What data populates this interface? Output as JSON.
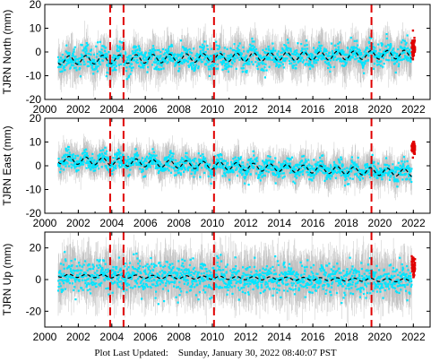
{
  "footer": {
    "label": "Plot Last Updated:",
    "timestamp": "Sunday, January 30, 2022 08:40:07 PST"
  },
  "colors": {
    "scatter": "#00e5ff",
    "errorbar": "#b8b8b8",
    "recent": "#e00000",
    "model": "#000000",
    "event_line": "#e00000"
  },
  "chart_data": [
    {
      "type": "scatter",
      "ylabel": "TJRN North (mm)",
      "xlim": [
        2000,
        2023
      ],
      "ylim": [
        -20,
        20
      ],
      "xticks": [
        2000,
        2002,
        2004,
        2006,
        2008,
        2010,
        2012,
        2014,
        2016,
        2018,
        2020,
        2022
      ],
      "yticks": [
        -20,
        -10,
        0,
        10,
        20
      ],
      "event_lines": [
        2003.9,
        2004.7,
        2010.1,
        2019.5
      ],
      "model_trend": {
        "x0": 2000.8,
        "x1": 2021.9,
        "y0": -3.5,
        "y1": -1.0,
        "seasonal_amplitude": 1.8
      },
      "scatter_spread": 4.5,
      "errorbar_size": 6,
      "recent_points": {
        "x0": 2021.9,
        "x1": 2022.1,
        "y_center": 1.5,
        "y_spread": 5
      }
    },
    {
      "type": "scatter",
      "ylabel": "TJRN East (mm)",
      "xlim": [
        2000,
        2023
      ],
      "ylim": [
        -20,
        20
      ],
      "xticks": [
        2000,
        2002,
        2004,
        2006,
        2008,
        2010,
        2012,
        2014,
        2016,
        2018,
        2020,
        2022
      ],
      "yticks": [
        -20,
        -10,
        0,
        10,
        20
      ],
      "event_lines": [
        2003.9,
        2004.7,
        2010.1,
        2019.5
      ],
      "model_trend": {
        "x0": 2000.8,
        "x1": 2021.9,
        "y0": 2.5,
        "y1": -3.0,
        "seasonal_amplitude": 1.6
      },
      "scatter_spread": 3.5,
      "errorbar_size": 5,
      "recent_points": {
        "x0": 2021.9,
        "x1": 2022.1,
        "y_center": 7.5,
        "y_spread": 3
      }
    },
    {
      "type": "scatter",
      "ylabel": "TJRN Up (mm)",
      "xlim": [
        2000,
        2023
      ],
      "ylim": [
        -30,
        30
      ],
      "xticks": [
        2000,
        2002,
        2004,
        2006,
        2008,
        2010,
        2012,
        2014,
        2016,
        2018,
        2020,
        2022
      ],
      "yticks": [
        -20,
        0,
        20
      ],
      "event_lines": [
        2003.9,
        2004.7,
        2010.1,
        2019.5
      ],
      "model_trend": {
        "x0": 2000.8,
        "x1": 2021.9,
        "y0": 2.5,
        "y1": -0.5,
        "seasonal_amplitude": 1.0
      },
      "scatter_spread": 9,
      "errorbar_size": 12,
      "recent_points": {
        "x0": 2021.9,
        "x1": 2022.1,
        "y_center": 8,
        "y_spread": 8
      }
    }
  ]
}
